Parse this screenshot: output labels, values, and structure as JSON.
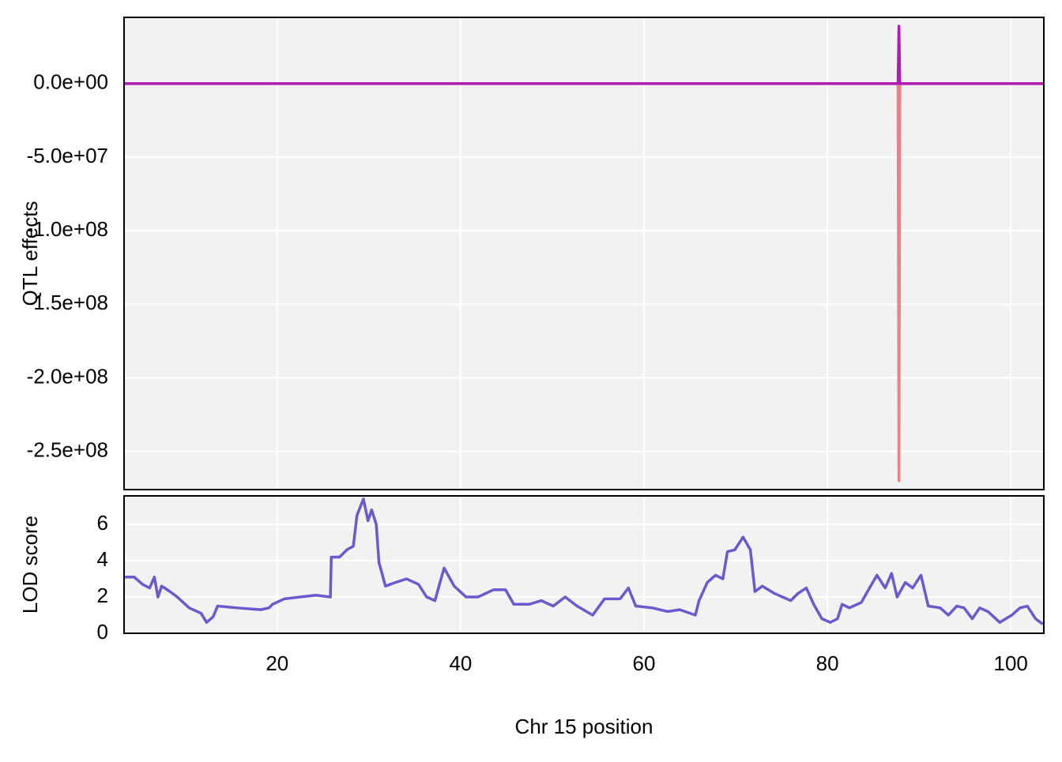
{
  "chart_data": [
    {
      "type": "line",
      "ylabel": "QTL effects",
      "x": [
        3.3,
        87.7,
        87.8,
        87.9,
        103.6
      ],
      "series": [
        {
          "color": "#f08080",
          "values": [
            0,
            0,
            -270000000,
            0,
            0
          ]
        },
        {
          "color": "#b01cb8",
          "values": [
            0,
            0,
            39000000,
            0,
            0
          ]
        }
      ],
      "xlim": [
        3.3,
        103.6
      ],
      "xticks": [
        20,
        40,
        60,
        80,
        100
      ],
      "ylim": [
        -276000000,
        45000000
      ],
      "yticks": [
        {
          "value": 0,
          "label": "0.0e+00"
        },
        {
          "value": -50000000,
          "label": "-5.0e+07"
        },
        {
          "value": -100000000,
          "label": "-1.0e+08"
        },
        {
          "value": -150000000,
          "label": "-1.5e+08"
        },
        {
          "value": -200000000,
          "label": "-2.0e+08"
        },
        {
          "value": -250000000,
          "label": "-2.5e+08"
        }
      ],
      "grid": true
    },
    {
      "type": "line",
      "xlabel": "Chr 15 position",
      "ylabel": "LOD score",
      "x": [
        3.3,
        4.4,
        5.3,
        6.1,
        6.6,
        7.0,
        7.4,
        8.3,
        9.1,
        10.4,
        11.7,
        12.3,
        13.0,
        13.5,
        15.6,
        18.2,
        19.1,
        19.5,
        20.8,
        22.5,
        24.2,
        25.8,
        25.9,
        26.8,
        27.6,
        28.3,
        28.7,
        29.4,
        29.9,
        30.3,
        30.8,
        31.1,
        31.8,
        32.9,
        34.1,
        35.4,
        36.3,
        37.2,
        38.2,
        39.3,
        40.6,
        41.9,
        43.6,
        44.9,
        45.8,
        47.5,
        48.8,
        50.1,
        51.4,
        52.7,
        54.4,
        55.7,
        57.4,
        58.3,
        59.1,
        60.9,
        62.6,
        63.9,
        65.6,
        66.0,
        66.9,
        67.8,
        68.6,
        69.1,
        69.9,
        70.8,
        71.6,
        72.1,
        72.9,
        74.2,
        76.0,
        76.8,
        77.7,
        78.5,
        79.4,
        80.3,
        81.1,
        81.6,
        82.4,
        83.7,
        84.6,
        85.4,
        86.3,
        87.0,
        87.6,
        88.5,
        89.3,
        90.2,
        91.0,
        92.3,
        93.2,
        94.1,
        94.9,
        95.8,
        96.6,
        97.5,
        98.8,
        100.1,
        101.0,
        101.8,
        102.7,
        103.5
      ],
      "series": [
        {
          "color": "#6a5acd",
          "values": [
            3.1,
            3.1,
            2.7,
            2.5,
            3.1,
            2.0,
            2.6,
            2.3,
            2.0,
            1.4,
            1.1,
            0.6,
            0.9,
            1.5,
            1.4,
            1.3,
            1.4,
            1.6,
            1.9,
            2.0,
            2.1,
            2.0,
            4.2,
            4.2,
            4.6,
            4.8,
            6.5,
            7.4,
            6.2,
            6.8,
            6.0,
            3.9,
            2.6,
            2.8,
            3.0,
            2.7,
            2.0,
            1.8,
            3.6,
            2.6,
            2.0,
            2.0,
            2.4,
            2.4,
            1.6,
            1.6,
            1.8,
            1.5,
            2.0,
            1.5,
            1.0,
            1.9,
            1.9,
            2.5,
            1.5,
            1.4,
            1.2,
            1.3,
            1.0,
            1.8,
            2.8,
            3.2,
            3.0,
            4.5,
            4.6,
            5.3,
            4.6,
            2.3,
            2.6,
            2.2,
            1.8,
            2.2,
            2.5,
            1.6,
            0.8,
            0.6,
            0.8,
            1.6,
            1.4,
            1.7,
            2.5,
            3.2,
            2.5,
            3.3,
            2.0,
            2.8,
            2.5,
            3.2,
            1.5,
            1.4,
            1.0,
            1.5,
            1.4,
            0.8,
            1.4,
            1.2,
            0.6,
            1.0,
            1.4,
            1.5,
            0.8,
            0.5
          ]
        }
      ],
      "xlim": [
        3.3,
        103.6
      ],
      "xticks": [
        20,
        40,
        60,
        80,
        100
      ],
      "ylim": [
        0,
        7.57
      ],
      "yticks": [
        0,
        2,
        4,
        6
      ],
      "grid": true
    }
  ]
}
